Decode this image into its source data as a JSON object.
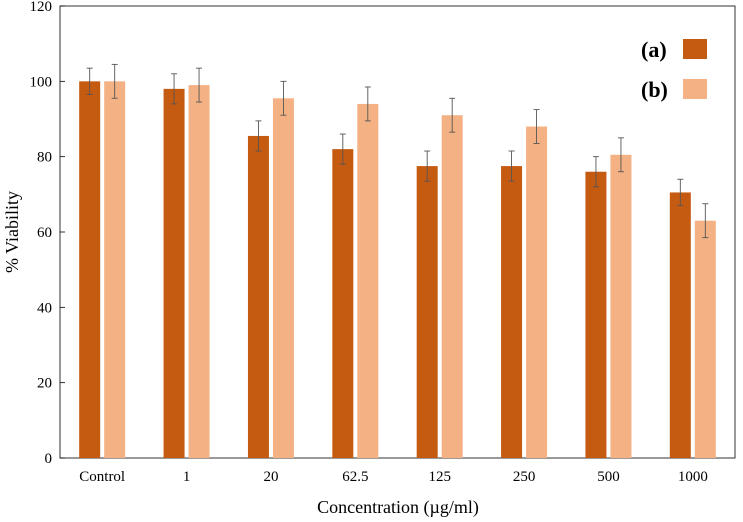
{
  "chart_data": {
    "type": "bar",
    "categories": [
      "Control",
      "1",
      "20",
      "62.5",
      "125",
      "250",
      "500",
      "1000"
    ],
    "series": [
      {
        "name": "(a)",
        "color": "#c55a11",
        "values": [
          100,
          98,
          85.5,
          82,
          77.5,
          77.5,
          76,
          70.5
        ],
        "errors": [
          3.5,
          4,
          4,
          4,
          4,
          4,
          4,
          3.5
        ]
      },
      {
        "name": "(b)",
        "color": "#f4b183",
        "values": [
          100,
          99,
          95.5,
          94,
          91,
          88,
          80.5,
          63
        ],
        "errors": [
          4.5,
          4.5,
          4.5,
          4.5,
          4.5,
          4.5,
          4.5,
          4.5
        ]
      }
    ],
    "xlabel": "Concentration (µg/ml)",
    "ylabel": "% Viability",
    "ylim": [
      0,
      120
    ],
    "yticks": [
      "0",
      "20",
      "40",
      "60",
      "80",
      "100",
      "120"
    ],
    "grid": false,
    "legend_position": "top-right"
  }
}
